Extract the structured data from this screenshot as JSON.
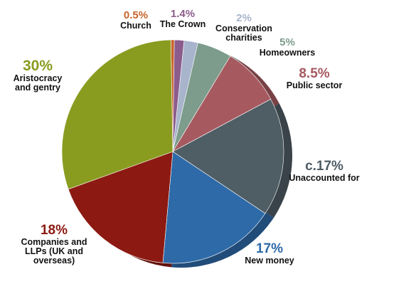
{
  "chart_data": {
    "type": "pie",
    "title": "",
    "slices": [
      {
        "label": "Church",
        "display": "0.5%",
        "value": 0.5,
        "color": "#c8642a"
      },
      {
        "label": "The Crown",
        "display": "1.4%",
        "value": 1.4,
        "color": "#8c5c8c"
      },
      {
        "label": "Conservation charities",
        "display": "2%",
        "value": 2,
        "color": "#a8b4cc"
      },
      {
        "label": "Homeowners",
        "display": "5%",
        "value": 5,
        "color": "#7d9c8c"
      },
      {
        "label": "Public sector",
        "display": "8.5%",
        "value": 8.5,
        "color": "#a65a60"
      },
      {
        "label": "Unaccounted for",
        "display": "c.17%",
        "value": 17,
        "color": "#4f5d65"
      },
      {
        "label": "New money",
        "display": "17%",
        "value": 17,
        "color": "#2e6aa8"
      },
      {
        "label": "Companies and LLPs (UK and overseas)",
        "display": "18%",
        "value": 18,
        "color": "#8c1a12"
      },
      {
        "label": "Aristocracy and gentry",
        "display": "30%",
        "value": 30,
        "color": "#8a9c20"
      }
    ]
  },
  "labels": {
    "church": {
      "pct": "0.5%",
      "name": "Church",
      "color": "#c8642a"
    },
    "crown": {
      "pct": "1.4%",
      "name": "The Crown",
      "color": "#8c5c8c"
    },
    "conservation": {
      "pct": "2%",
      "name1": "Conservation",
      "name2": "charities",
      "color": "#a8b4cc"
    },
    "homeowners": {
      "pct": "5%",
      "name": "Homeowners",
      "color": "#7d9c8c"
    },
    "public": {
      "pct": "8.5%",
      "name": "Public sector",
      "color": "#a65a60"
    },
    "unaccounted": {
      "pct": "c.17%",
      "name": "Unaccounted for",
      "color": "#4f5d65"
    },
    "newmoney": {
      "pct": "17%",
      "name": "New money",
      "color": "#2e6aa8"
    },
    "companies": {
      "pct": "18%",
      "name1": "Companies and",
      "name2": "LLPs (UK and",
      "name3": "overseas)",
      "color": "#8c1a12"
    },
    "aristocracy": {
      "pct": "30%",
      "name1": "Aristocracy",
      "name2": "and gentry",
      "color": "#8a9c20"
    }
  }
}
